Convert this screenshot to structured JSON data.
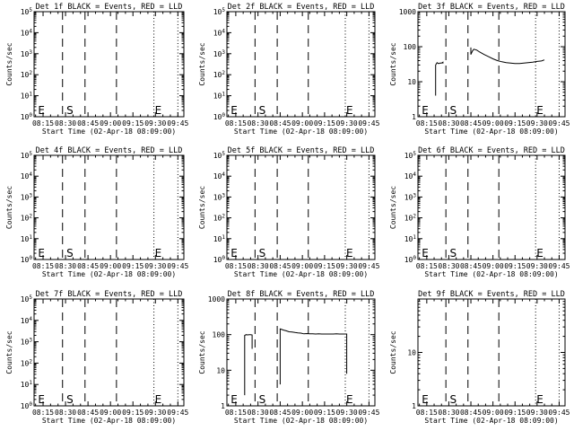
{
  "chart_data": [
    {
      "type": "line",
      "title": "Det 1f BLACK = Events, RED = LLD",
      "ylabel": "Counts/sec",
      "xlabel": "Start Time (02-Apr-18 08:09:00)",
      "yscale": "log",
      "ylim": [
        1,
        100000
      ],
      "ytick_labels": [
        "10^0",
        "10^1",
        "10^2",
        "10^3",
        "10^4",
        "10^5"
      ],
      "xtick_labels": [
        "08:15",
        "08:30",
        "08:45",
        "09:00",
        "09:15",
        "09:30",
        "09:45"
      ],
      "x_ticks_min": [
        6,
        21,
        36,
        51,
        66,
        81,
        96
      ],
      "xlim_min": [
        0,
        100
      ],
      "dashed_min": [
        19,
        34,
        55
      ],
      "dotted_min": [
        80,
        96
      ],
      "markers": [
        {
          "label": "E",
          "min": 2
        },
        {
          "label": "S",
          "min": 21
        },
        {
          "label": "E",
          "min": 80
        }
      ],
      "series": []
    },
    {
      "type": "line",
      "title": "Det 2f BLACK = Events, RED = LLD",
      "ylabel": "Counts/sec",
      "xlabel": "Start Time (02-Apr-18 08:09:00)",
      "yscale": "log",
      "ylim": [
        1,
        100000
      ],
      "ytick_labels": [
        "10^0",
        "10^1",
        "10^2",
        "10^3",
        "10^4",
        "10^5"
      ],
      "xtick_labels": [
        "08:15",
        "08:30",
        "08:45",
        "09:00",
        "09:15",
        "09:30",
        "09:45"
      ],
      "x_ticks_min": [
        6,
        21,
        36,
        51,
        66,
        81,
        96
      ],
      "xlim_min": [
        0,
        100
      ],
      "dashed_min": [
        19,
        34,
        55
      ],
      "dotted_min": [
        80,
        96
      ],
      "markers": [
        {
          "label": "E",
          "min": 2
        },
        {
          "label": "S",
          "min": 21
        },
        {
          "label": "E",
          "min": 80
        }
      ],
      "series": []
    },
    {
      "type": "line",
      "title": "Det 3f BLACK = Events, RED = LLD",
      "ylabel": "Counts/sec",
      "xlabel": "Start Time (02-Apr-18 08:09:00)",
      "yscale": "log",
      "ylim": [
        1,
        1000
      ],
      "ytick_labels": [
        "1",
        "10",
        "100",
        "1000"
      ],
      "xtick_labels": [
        "08:15",
        "08:30",
        "08:45",
        "09:00",
        "09:15",
        "09:30",
        "09:45"
      ],
      "x_ticks_min": [
        6,
        21,
        36,
        51,
        66,
        81,
        96
      ],
      "xlim_min": [
        0,
        100
      ],
      "dashed_min": [
        19,
        34,
        55
      ],
      "dotted_min": [
        80,
        96
      ],
      "markers": [
        {
          "label": "E",
          "min": 2
        },
        {
          "label": "S",
          "min": 21
        },
        {
          "label": "E",
          "min": 80
        }
      ],
      "series": [
        {
          "segments": [
            [
              [
                12,
                4
              ],
              [
                12,
                30
              ],
              [
                13,
                35
              ],
              [
                14,
                33
              ],
              [
                15,
                34
              ],
              [
                16,
                34
              ],
              [
                17,
                36
              ],
              [
                17,
                33
              ]
            ],
            [
              [
                36,
                95
              ],
              [
                36,
                60
              ],
              [
                37,
                75
              ],
              [
                38,
                85
              ],
              [
                40,
                80
              ],
              [
                42,
                70
              ],
              [
                45,
                60
              ],
              [
                48,
                52
              ],
              [
                51,
                45
              ],
              [
                54,
                40
              ],
              [
                57,
                37
              ],
              [
                60,
                35
              ],
              [
                63,
                34
              ],
              [
                66,
                33
              ],
              [
                69,
                33
              ],
              [
                72,
                34
              ],
              [
                75,
                35
              ],
              [
                78,
                36
              ],
              [
                81,
                38
              ],
              [
                84,
                39
              ],
              [
                86,
                42
              ]
            ]
          ]
        }
      ]
    },
    {
      "type": "line",
      "title": "Det 4f BLACK = Events, RED = LLD",
      "ylabel": "Counts/sec",
      "xlabel": "Start Time (02-Apr-18 08:09:00)",
      "yscale": "log",
      "ylim": [
        1,
        100000
      ],
      "ytick_labels": [
        "10^0",
        "10^1",
        "10^2",
        "10^3",
        "10^4",
        "10^5"
      ],
      "xtick_labels": [
        "08:15",
        "08:30",
        "08:45",
        "09:00",
        "09:15",
        "09:30",
        "09:45"
      ],
      "x_ticks_min": [
        6,
        21,
        36,
        51,
        66,
        81,
        96
      ],
      "xlim_min": [
        0,
        100
      ],
      "dashed_min": [
        19,
        34,
        55
      ],
      "dotted_min": [
        80,
        96
      ],
      "markers": [
        {
          "label": "E",
          "min": 2
        },
        {
          "label": "S",
          "min": 21
        },
        {
          "label": "E",
          "min": 80
        }
      ],
      "series": []
    },
    {
      "type": "line",
      "title": "Det 5f BLACK = Events, RED = LLD",
      "ylabel": "Counts/sec",
      "xlabel": "Start Time (02-Apr-18 08:09:00)",
      "yscale": "log",
      "ylim": [
        1,
        100000
      ],
      "ytick_labels": [
        "10^0",
        "10^1",
        "10^2",
        "10^3",
        "10^4",
        "10^5"
      ],
      "xtick_labels": [
        "08:15",
        "08:30",
        "08:45",
        "09:00",
        "09:15",
        "09:30",
        "09:45"
      ],
      "x_ticks_min": [
        6,
        21,
        36,
        51,
        66,
        81,
        96
      ],
      "xlim_min": [
        0,
        100
      ],
      "dashed_min": [
        19,
        34,
        55
      ],
      "dotted_min": [
        80,
        96
      ],
      "markers": [
        {
          "label": "E",
          "min": 2
        },
        {
          "label": "S",
          "min": 21
        },
        {
          "label": "E",
          "min": 80
        }
      ],
      "series": []
    },
    {
      "type": "line",
      "title": "Det 6f BLACK = Events, RED = LLD",
      "ylabel": "Counts/sec",
      "xlabel": "Start Time (02-Apr-18 08:09:00)",
      "yscale": "log",
      "ylim": [
        1,
        100000
      ],
      "ytick_labels": [
        "10^0",
        "10^1",
        "10^2",
        "10^3",
        "10^4",
        "10^5"
      ],
      "xtick_labels": [
        "08:15",
        "08:30",
        "08:45",
        "09:00",
        "09:15",
        "09:30",
        "09:45"
      ],
      "x_ticks_min": [
        6,
        21,
        36,
        51,
        66,
        81,
        96
      ],
      "xlim_min": [
        0,
        100
      ],
      "dashed_min": [
        19,
        34,
        55
      ],
      "dotted_min": [
        80,
        96
      ],
      "markers": [
        {
          "label": "E",
          "min": 2
        },
        {
          "label": "S",
          "min": 21
        },
        {
          "label": "E",
          "min": 80
        }
      ],
      "series": []
    },
    {
      "type": "line",
      "title": "Det 7f BLACK = Events, RED = LLD",
      "ylabel": "Counts/sec",
      "xlabel": "Start Time (02-Apr-18 08:09:00)",
      "yscale": "log",
      "ylim": [
        1,
        100000
      ],
      "ytick_labels": [
        "10^0",
        "10^1",
        "10^2",
        "10^3",
        "10^4",
        "10^5"
      ],
      "xtick_labels": [
        "08:15",
        "08:30",
        "08:45",
        "09:00",
        "09:15",
        "09:30",
        "09:45"
      ],
      "x_ticks_min": [
        6,
        21,
        36,
        51,
        66,
        81,
        96
      ],
      "xlim_min": [
        0,
        100
      ],
      "dashed_min": [
        19,
        34,
        55
      ],
      "dotted_min": [
        80,
        96
      ],
      "markers": [
        {
          "label": "E",
          "min": 2
        },
        {
          "label": "S",
          "min": 21
        },
        {
          "label": "E",
          "min": 80
        }
      ],
      "series": []
    },
    {
      "type": "line",
      "title": "Det 8f BLACK = Events, RED = LLD",
      "ylabel": "Counts/sec",
      "xlabel": "Start Time (02-Apr-18 08:09:00)",
      "yscale": "log",
      "ylim": [
        1,
        1000
      ],
      "ytick_labels": [
        "1",
        "10",
        "100",
        "1000"
      ],
      "xtick_labels": [
        "08:15",
        "08:30",
        "08:45",
        "09:00",
        "09:15",
        "09:30",
        "09:45"
      ],
      "x_ticks_min": [
        6,
        21,
        36,
        51,
        66,
        81,
        96
      ],
      "xlim_min": [
        0,
        100
      ],
      "dashed_min": [
        19,
        34,
        55
      ],
      "dotted_min": [
        80,
        96
      ],
      "markers": [
        {
          "label": "E",
          "min": 2
        },
        {
          "label": "S",
          "min": 21
        },
        {
          "label": "E",
          "min": 80
        }
      ],
      "series": [
        {
          "segments": [
            [
              [
                12,
                2
              ],
              [
                12,
                95
              ],
              [
                13,
                100
              ],
              [
                14,
                98
              ],
              [
                15,
                100
              ],
              [
                16,
                100
              ],
              [
                17,
                98
              ],
              [
                17,
                40
              ]
            ],
            [
              [
                36,
                4
              ],
              [
                36,
                145
              ],
              [
                37,
                140
              ],
              [
                38,
                135
              ],
              [
                40,
                128
              ],
              [
                42,
                120
              ],
              [
                44,
                118
              ],
              [
                46,
                115
              ],
              [
                48,
                112
              ],
              [
                50,
                110
              ],
              [
                52,
                105
              ],
              [
                54,
                107
              ],
              [
                56,
                105
              ],
              [
                58,
                106
              ],
              [
                60,
                104
              ],
              [
                62,
                105
              ],
              [
                64,
                104
              ],
              [
                66,
                104
              ],
              [
                68,
                104
              ],
              [
                70,
                104
              ],
              [
                72,
                104
              ],
              [
                74,
                105
              ],
              [
                76,
                104
              ],
              [
                78,
                104
              ],
              [
                80,
                104
              ],
              [
                81,
                104
              ],
              [
                81,
                8
              ]
            ]
          ]
        }
      ]
    },
    {
      "type": "line",
      "title": "Det 9f BLACK = Events, RED = LLD",
      "ylabel": "Counts/sec",
      "xlabel": "Start Time (02-Apr-18 08:09:00)",
      "yscale": "log",
      "ylim": [
        1,
        100
      ],
      "ytick_labels": [
        "1",
        "10"
      ],
      "xtick_labels": [
        "08:15",
        "08:30",
        "08:45",
        "09:00",
        "09:15",
        "09:30",
        "09:45"
      ],
      "x_ticks_min": [
        6,
        21,
        36,
        51,
        66,
        81,
        96
      ],
      "xlim_min": [
        0,
        100
      ],
      "dashed_min": [
        19,
        34,
        55
      ],
      "dotted_min": [
        80,
        96
      ],
      "markers": [
        {
          "label": "E",
          "min": 2
        },
        {
          "label": "S",
          "min": 21
        },
        {
          "label": "E",
          "min": 80
        }
      ],
      "series": []
    }
  ]
}
